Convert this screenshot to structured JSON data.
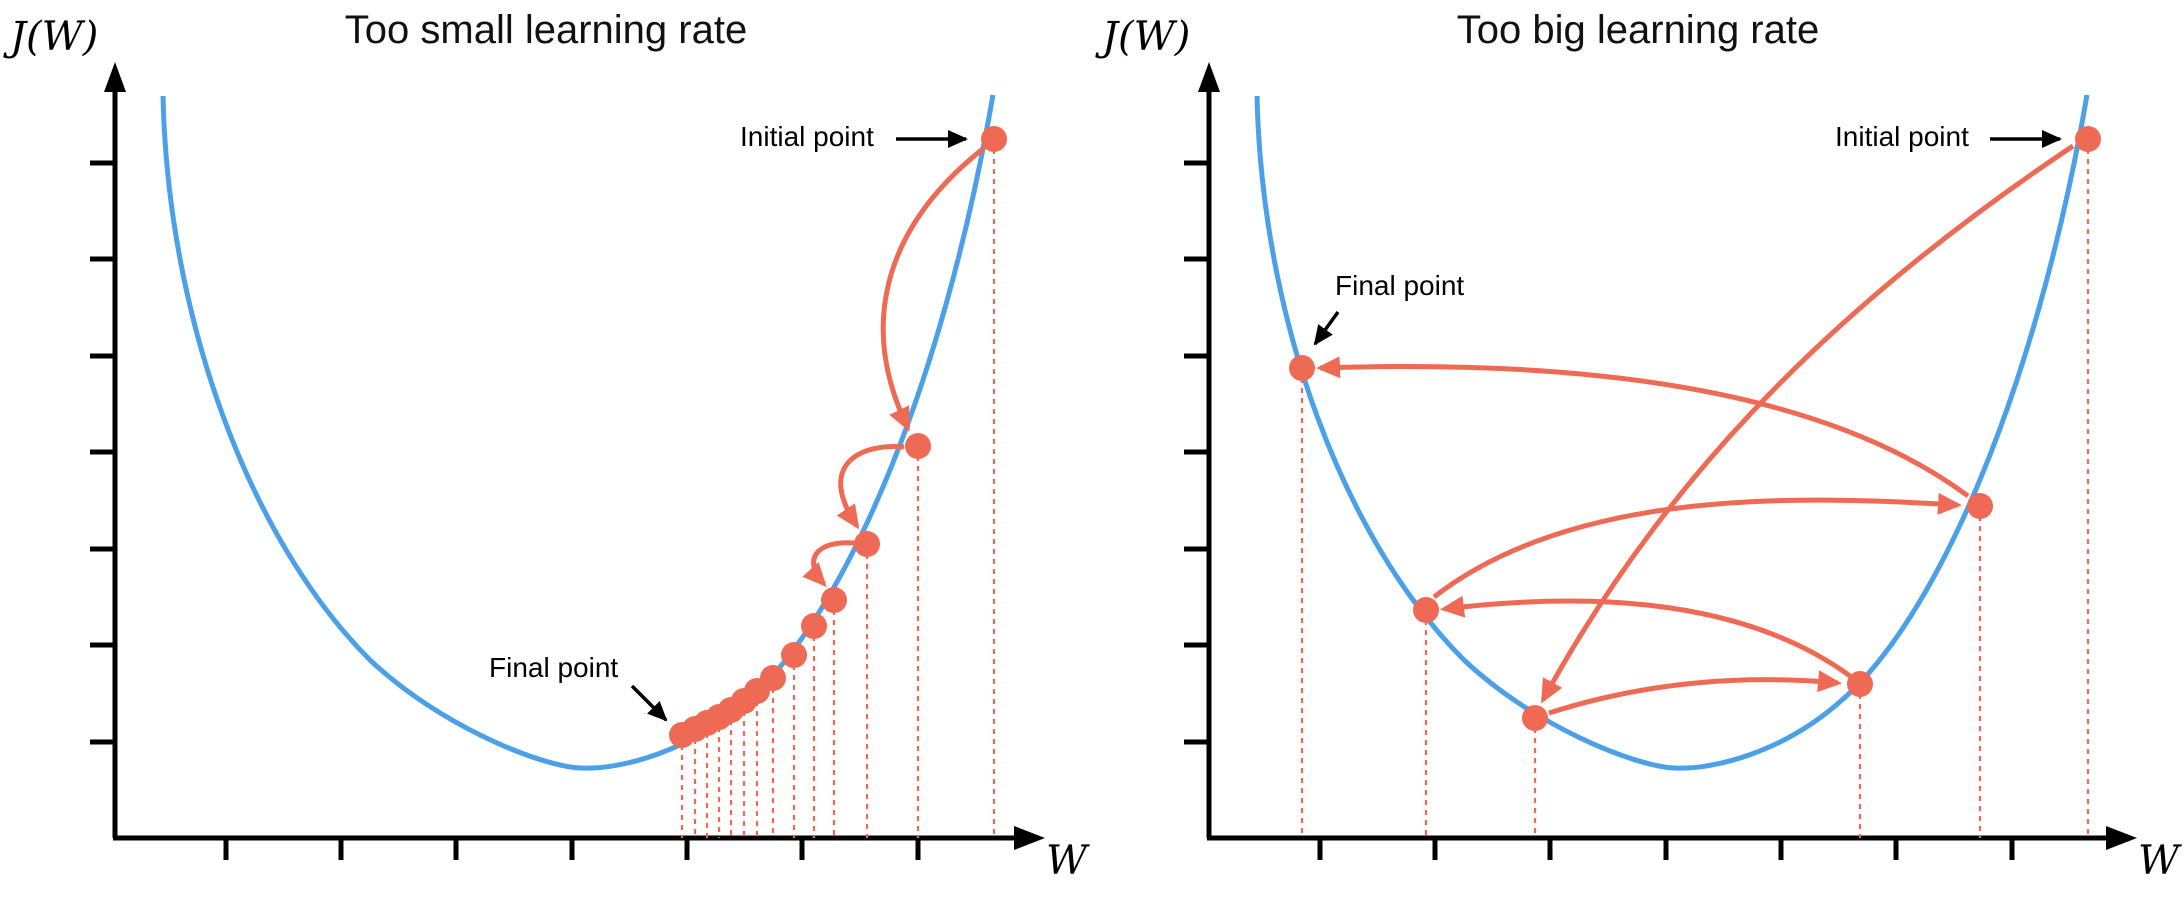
{
  "panels": {
    "left": {
      "title": "Too small learning rate",
      "ylabel": "J(W)",
      "xlabel": "W",
      "initial_label": "Initial point",
      "final_label": "Final point"
    },
    "right": {
      "title": "Too big learning rate",
      "ylabel": "J(W)",
      "xlabel": "W",
      "initial_label": "Initial point",
      "final_label": "Final point"
    }
  },
  "colors": {
    "curve": "#4BA0E8",
    "points": "#EE6A54",
    "axis": "#000000"
  }
}
